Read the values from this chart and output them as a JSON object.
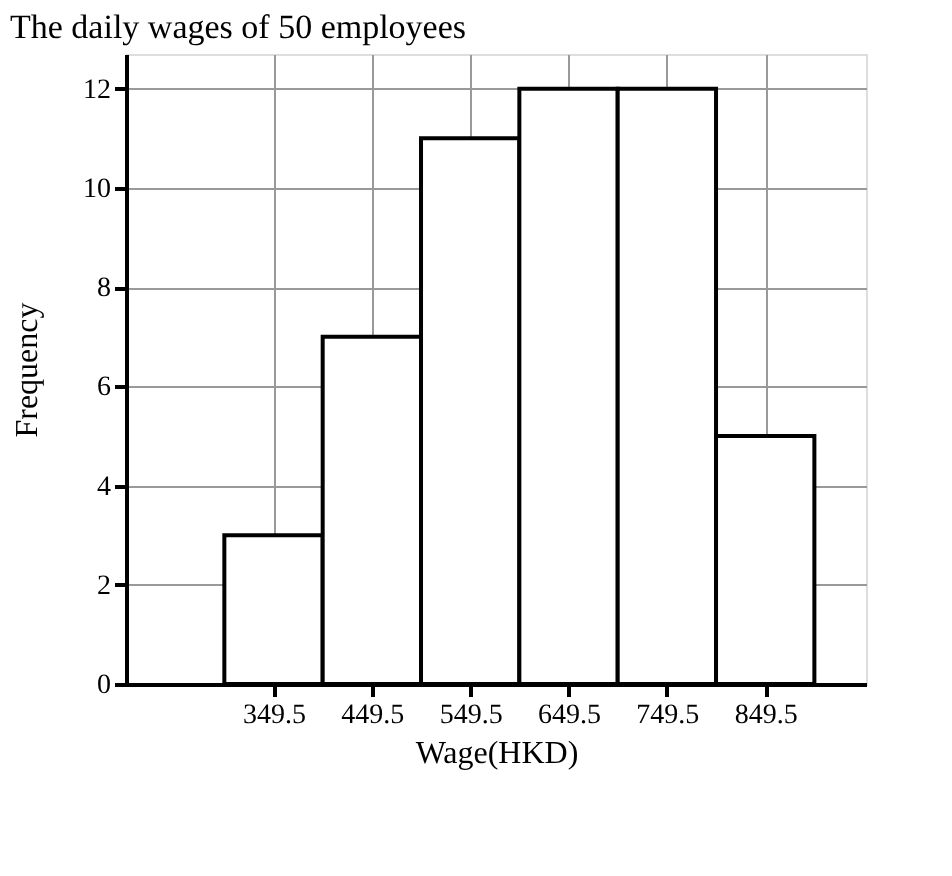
{
  "chart_data": {
    "type": "histogram",
    "title": "The daily wages of 50 employees",
    "bins": [
      299.5,
      399.5,
      499.5,
      599.5,
      699.5,
      799.5,
      899.5
    ],
    "values": [
      3,
      7,
      11,
      12,
      12,
      5
    ],
    "color": "#ffffff",
    "xlabel": "Wage(HKD)",
    "ylabel": "Frequency",
    "xlim": [
      199.5,
      952
    ],
    "xticks": [
      349.5,
      449.5,
      549.5,
      649.5,
      749.5,
      849.5
    ],
    "ylim": [
      0,
      12.7
    ],
    "yticks": [
      0,
      2,
      4,
      6,
      8,
      10,
      12
    ],
    "grid": true
  }
}
